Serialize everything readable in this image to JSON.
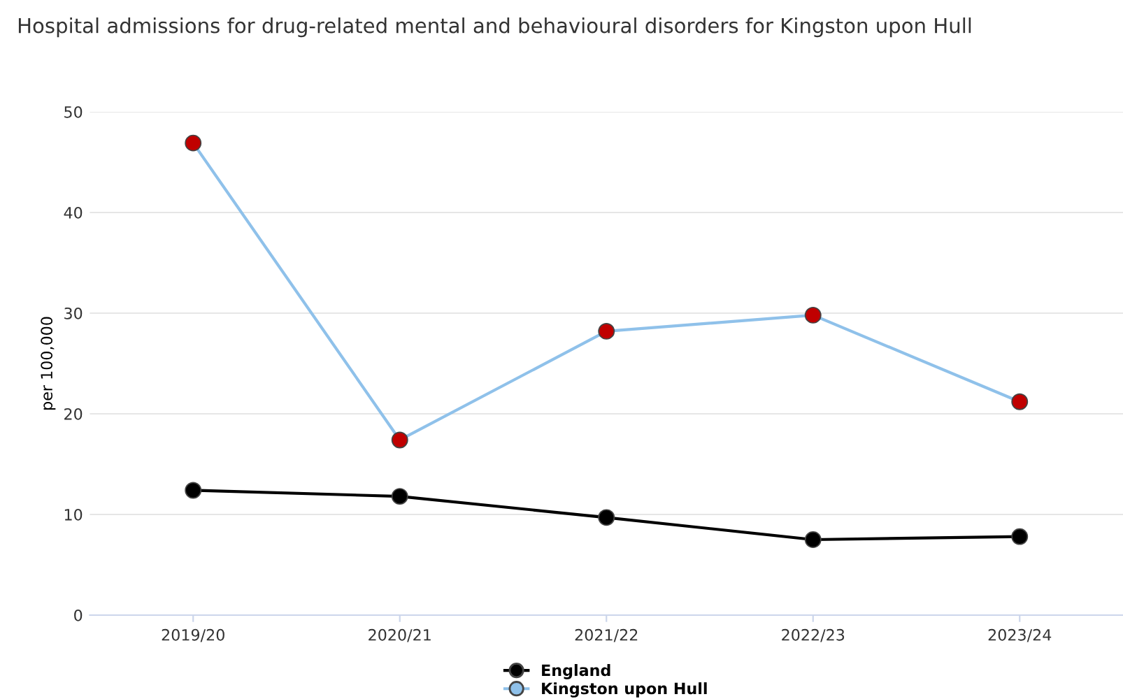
{
  "chart_data": {
    "type": "line",
    "title": "Hospital admissions for drug-related mental and behavioural disorders for Kingston upon Hull",
    "ylabel": "per 100,000",
    "categories": [
      "2019/20",
      "2020/21",
      "2021/22",
      "2022/23",
      "2023/24"
    ],
    "series": [
      {
        "name": "England",
        "color": "#000000",
        "values": [
          12.4,
          11.8,
          9.7,
          7.5,
          7.8
        ]
      },
      {
        "name": "Kingston upon Hull",
        "color": "#8fc1ea",
        "colors": [
          "#c00000",
          "#c00000",
          "#c00000",
          "#c00000",
          "#c00000"
        ],
        "values": [
          46.9,
          17.4,
          28.2,
          29.8,
          21.2
        ]
      }
    ],
    "ylim": [
      0,
      50
    ],
    "yticks": [
      0,
      10,
      20,
      30,
      40,
      50
    ],
    "grid": "y",
    "legend": "bottom",
    "marker": "circle"
  }
}
